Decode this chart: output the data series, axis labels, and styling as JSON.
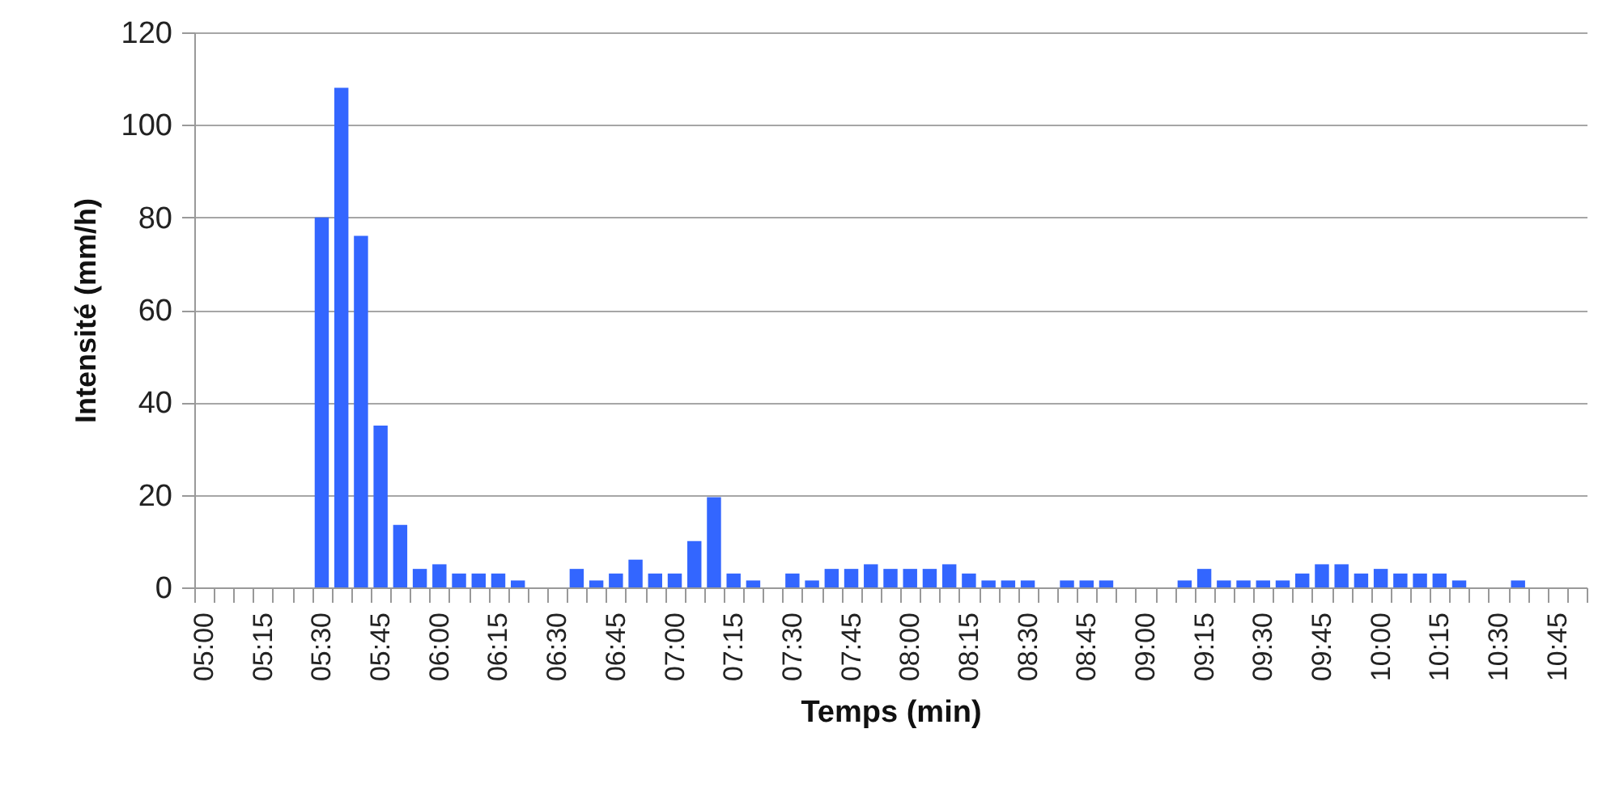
{
  "chart_data": {
    "type": "bar",
    "xlabel": "Temps (min)",
    "ylabel": "Intensité (mm/h)",
    "categories": [
      "05:00",
      null,
      null,
      "05:15",
      null,
      null,
      "05:30",
      null,
      null,
      "05:45",
      null,
      null,
      "06:00",
      null,
      null,
      "06:15",
      null,
      null,
      "06:30",
      null,
      null,
      "06:45",
      null,
      null,
      "07:00",
      null,
      null,
      "07:15",
      null,
      null,
      "07:30",
      null,
      null,
      "07:45",
      null,
      null,
      "08:00",
      null,
      null,
      "08:15",
      null,
      null,
      "08:30",
      null,
      null,
      "08:45",
      null,
      null,
      "09:00",
      null,
      null,
      "09:15",
      null,
      null,
      "09:30",
      null,
      null,
      "09:45",
      null,
      null,
      "10:00",
      null,
      null,
      "10:15",
      null,
      null,
      "10:30",
      null,
      null,
      "10:45",
      null
    ],
    "values": [
      0,
      0,
      0,
      0,
      0,
      0,
      80,
      108,
      76,
      35,
      13.5,
      4,
      5,
      3,
      3,
      3,
      1.5,
      0,
      0,
      4,
      1.5,
      3,
      6,
      3,
      3,
      10,
      19.5,
      3,
      1.5,
      0,
      3,
      1.5,
      4,
      4,
      5,
      4,
      4,
      4,
      5,
      3,
      1.5,
      1.5,
      1.5,
      0,
      1.5,
      1.5,
      1.5,
      0,
      0,
      0,
      1.5,
      4,
      1.5,
      1.5,
      1.5,
      1.5,
      3,
      5,
      5,
      3,
      4,
      3,
      3,
      3,
      1.5,
      0,
      0,
      1.5,
      0,
      0,
      0
    ],
    "color": "#3366ff",
    "ylim": [
      0,
      120
    ],
    "yticks": [
      0,
      20,
      40,
      60,
      80,
      100,
      120
    ],
    "grid": "y"
  }
}
